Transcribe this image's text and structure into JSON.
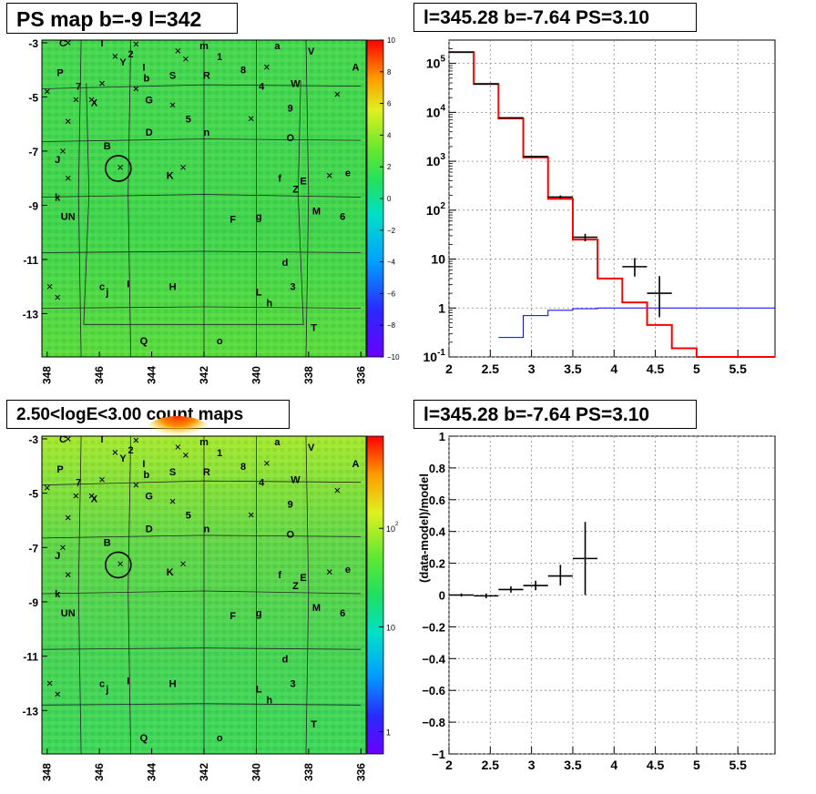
{
  "panels": {
    "top_left_title": "PS map b=-9 l=342",
    "top_right_title": "l=345.28 b=-7.64 PS=3.10",
    "bottom_left_title": "2.50<logE<3.00 count maps",
    "bottom_right_title": "l=345.28 b=-7.64 PS=3.10"
  },
  "colors": {
    "data": "#000000",
    "model": "#ff0000",
    "background_model": "#0000ff"
  },
  "chart_data": [
    {
      "type": "heatmap",
      "title": "PS map b=-9 l=342",
      "x_ticks": [
        "348",
        "346",
        "344",
        "342",
        "340",
        "338",
        "336"
      ],
      "y_ticks": [
        "-3",
        "-5",
        "-7",
        "-9",
        "-11",
        "-13"
      ],
      "xlim": [
        348.2,
        335.8
      ],
      "ylim": [
        -14.6,
        -2.9
      ],
      "colorbar": {
        "min": -10,
        "max": 10,
        "ticks": [
          "10",
          "8",
          "6",
          "4",
          "2",
          "0",
          "−2",
          "−4",
          "−6",
          "−8",
          "−10"
        ]
      },
      "circle": {
        "l": 345.28,
        "b": -7.64
      }
    },
    {
      "type": "line",
      "title": "l=345.28 b=-7.64 PS=3.10",
      "ylog": true,
      "xlim": [
        2,
        5.95
      ],
      "ylim": [
        0.1,
        300000
      ],
      "x_ticks": [
        "2",
        "2.5",
        "3",
        "3.5",
        "4",
        "4.5",
        "5",
        "5.5"
      ],
      "y_ticks": [
        "10^-1",
        "1",
        "10",
        "10^2",
        "10^3",
        "10^4",
        "10^5"
      ],
      "grid": true,
      "series": [
        {
          "role": "model",
          "style": "step",
          "edges": [
            2.0,
            2.3,
            2.6,
            2.9,
            3.2,
            3.5,
            3.8,
            4.1,
            4.4,
            4.7,
            5.0,
            5.95
          ],
          "values": [
            170000,
            38000,
            7500,
            1200,
            170,
            25,
            4,
            1.3,
            0.45,
            0.15,
            0.1
          ]
        },
        {
          "role": "background",
          "style": "step",
          "edges": [
            2.6,
            2.9,
            3.2,
            3.5,
            3.8,
            4.1,
            4.4,
            4.7,
            5.0,
            5.3,
            5.95
          ],
          "values": [
            0.25,
            0.7,
            0.9,
            0.97,
            1,
            1,
            1,
            1,
            1,
            1
          ]
        },
        {
          "role": "data",
          "style": "errorbar",
          "points": [
            {
              "x": 2.15,
              "y": 170000,
              "xerr": 0.15,
              "ylo": 168000,
              "yhi": 172000
            },
            {
              "x": 2.45,
              "y": 38000,
              "xerr": 0.15,
              "ylo": 37400,
              "yhi": 38600
            },
            {
              "x": 2.75,
              "y": 7700,
              "xerr": 0.15,
              "ylo": 7500,
              "yhi": 7900
            },
            {
              "x": 3.05,
              "y": 1250,
              "xerr": 0.15,
              "ylo": 1200,
              "yhi": 1300
            },
            {
              "x": 3.35,
              "y": 185,
              "xerr": 0.15,
              "ylo": 170,
              "yhi": 200
            },
            {
              "x": 3.65,
              "y": 28,
              "xerr": 0.15,
              "ylo": 23,
              "yhi": 33
            },
            {
              "x": 4.25,
              "y": 7,
              "xerr": 0.15,
              "ylo": 4.4,
              "yhi": 10.5
            },
            {
              "x": 4.55,
              "y": 2,
              "xerr": 0.15,
              "ylo": 0.65,
              "yhi": 4.5
            }
          ]
        }
      ]
    },
    {
      "type": "heatmap",
      "title": "2.50<logE<3.00 count maps",
      "x_ticks": [
        "348",
        "346",
        "344",
        "342",
        "340",
        "338",
        "336"
      ],
      "y_ticks": [
        "-3",
        "-5",
        "-7",
        "-9",
        "-11",
        "-13"
      ],
      "xlim": [
        348.2,
        335.8
      ],
      "ylim": [
        -14.6,
        -2.9
      ],
      "colorbar": {
        "log": true,
        "ticks": [
          "10^2",
          "10",
          "1"
        ]
      },
      "circle": {
        "l": 345.28,
        "b": -7.64
      }
    },
    {
      "type": "scatter",
      "title": "l=345.28 b=-7.64 PS=3.10",
      "ylabel": "(data-model)/model",
      "xlim": [
        2,
        5.95
      ],
      "ylim": [
        -1,
        1
      ],
      "x_ticks": [
        "2",
        "2.5",
        "3",
        "3.5",
        "4",
        "4.5",
        "5",
        "5.5"
      ],
      "y_ticks": [
        "1",
        "0.8",
        "0.6",
        "0.4",
        "0.2",
        "0",
        "−0.2",
        "−0.4",
        "−0.6",
        "−0.8",
        "−1"
      ],
      "grid": true,
      "points": [
        {
          "x": 2.15,
          "y": 0.0,
          "xerr": 0.15,
          "ylo": -0.01,
          "yhi": 0.01
        },
        {
          "x": 2.45,
          "y": -0.005,
          "xerr": 0.15,
          "ylo": -0.02,
          "yhi": 0.01
        },
        {
          "x": 2.75,
          "y": 0.035,
          "xerr": 0.15,
          "ylo": 0.015,
          "yhi": 0.055
        },
        {
          "x": 3.05,
          "y": 0.06,
          "xerr": 0.15,
          "ylo": 0.03,
          "yhi": 0.09
        },
        {
          "x": 3.35,
          "y": 0.12,
          "xerr": 0.15,
          "ylo": 0.06,
          "yhi": 0.19
        },
        {
          "x": 3.65,
          "y": 0.23,
          "xerr": 0.15,
          "ylo": 0.0,
          "yhi": 0.46
        }
      ]
    }
  ],
  "source_labels": [
    {
      "t": "C",
      "l": 347.4,
      "b": -3.0
    },
    {
      "t": "I",
      "l": 345.9,
      "b": -3.0
    },
    {
      "t": "m",
      "l": 342.0,
      "b": -3.1
    },
    {
      "t": "a",
      "l": 339.2,
      "b": -3.1
    },
    {
      "t": "V",
      "l": 337.9,
      "b": -3.3
    },
    {
      "t": "2",
      "l": 344.8,
      "b": -3.4
    },
    {
      "t": "1",
      "l": 341.4,
      "b": -3.5
    },
    {
      "t": "Y",
      "l": 345.1,
      "b": -3.7
    },
    {
      "t": "8",
      "l": 340.5,
      "b": -4.0
    },
    {
      "t": "A",
      "l": 336.2,
      "b": -3.9
    },
    {
      "t": "P",
      "l": 347.5,
      "b": -4.1
    },
    {
      "t": "I",
      "l": 344.3,
      "b": -3.9
    },
    {
      "t": "b",
      "l": 344.2,
      "b": -4.3
    },
    {
      "t": "S",
      "l": 343.2,
      "b": -4.2
    },
    {
      "t": "R",
      "l": 341.9,
      "b": -4.2
    },
    {
      "t": "7",
      "l": 346.8,
      "b": -4.6
    },
    {
      "t": "4",
      "l": 339.8,
      "b": -4.6
    },
    {
      "t": "W",
      "l": 338.5,
      "b": -4.5
    },
    {
      "t": "G",
      "l": 344.1,
      "b": -5.1
    },
    {
      "t": "X",
      "l": 346.2,
      "b": -5.2
    },
    {
      "t": "9",
      "l": 338.7,
      "b": -5.4
    },
    {
      "t": "5",
      "l": 342.6,
      "b": -5.8
    },
    {
      "t": "D",
      "l": 344.1,
      "b": -6.3
    },
    {
      "t": "n",
      "l": 341.9,
      "b": -6.3
    },
    {
      "t": "O",
      "l": 338.7,
      "b": -6.5
    },
    {
      "t": "B",
      "l": 345.7,
      "b": -6.8
    },
    {
      "t": "J",
      "l": 347.6,
      "b": -7.3
    },
    {
      "t": "K",
      "l": 343.3,
      "b": -7.9
    },
    {
      "t": "f",
      "l": 339.1,
      "b": -8.0
    },
    {
      "t": "e",
      "l": 336.5,
      "b": -7.8
    },
    {
      "t": "E",
      "l": 338.2,
      "b": -8.1
    },
    {
      "t": "Z",
      "l": 338.5,
      "b": -8.4
    },
    {
      "t": "k",
      "l": 347.6,
      "b": -8.7
    },
    {
      "t": "M",
      "l": 337.7,
      "b": -9.2
    },
    {
      "t": "6",
      "l": 336.7,
      "b": -9.4
    },
    {
      "t": "g",
      "l": 339.9,
      "b": -9.4
    },
    {
      "t": "UN",
      "l": 347.2,
      "b": -9.4
    },
    {
      "t": "F",
      "l": 340.9,
      "b": -9.5
    },
    {
      "t": "d",
      "l": 338.9,
      "b": -11.1
    },
    {
      "t": "c",
      "l": 345.9,
      "b": -12.0
    },
    {
      "t": "j",
      "l": 345.7,
      "b": -12.2
    },
    {
      "t": "I",
      "l": 344.9,
      "b": -11.9
    },
    {
      "t": "H",
      "l": 343.2,
      "b": -12.0
    },
    {
      "t": "3",
      "l": 338.6,
      "b": -12.0
    },
    {
      "t": "L",
      "l": 339.9,
      "b": -12.2
    },
    {
      "t": "h",
      "l": 339.5,
      "b": -12.6
    },
    {
      "t": "T",
      "l": 337.8,
      "b": -13.5
    },
    {
      "t": "Q",
      "l": 344.3,
      "b": -14.0
    },
    {
      "t": "o",
      "l": 341.4,
      "b": -14.0
    }
  ],
  "source_marks": [
    [
      347.2,
      -3.0
    ],
    [
      345.4,
      -3.5
    ],
    [
      344.6,
      -3.05
    ],
    [
      343.0,
      -3.3
    ],
    [
      342.7,
      -3.6
    ],
    [
      339.6,
      -3.9
    ],
    [
      348.0,
      -4.8
    ],
    [
      346.9,
      -5.1
    ],
    [
      346.3,
      -5.1
    ],
    [
      344.6,
      -4.7
    ],
    [
      343.2,
      -5.3
    ],
    [
      340.2,
      -5.8
    ],
    [
      347.2,
      -5.9
    ],
    [
      336.9,
      -4.9
    ],
    [
      345.9,
      -4.5
    ],
    [
      347.4,
      -7.0
    ],
    [
      347.2,
      -8.0
    ],
    [
      342.8,
      -7.6
    ],
    [
      337.2,
      -7.9
    ],
    [
      347.9,
      -12.0
    ],
    [
      347.6,
      -12.4
    ],
    [
      345.2,
      -7.6
    ]
  ],
  "grid_lines": {
    "horizontal": [
      [
        [
          348.2,
          -4.7
        ],
        [
          342,
          -4.55
        ],
        [
          336,
          -4.6
        ]
      ],
      [
        [
          348.2,
          -6.65
        ],
        [
          342,
          -6.55
        ],
        [
          336,
          -6.6
        ]
      ],
      [
        [
          348.2,
          -8.7
        ],
        [
          342,
          -8.6
        ],
        [
          336,
          -8.7
        ]
      ],
      [
        [
          348.2,
          -10.75
        ],
        [
          342,
          -10.7
        ],
        [
          336,
          -10.75
        ]
      ],
      [
        [
          348.2,
          -12.8
        ],
        [
          342,
          -12.75
        ],
        [
          336,
          -12.8
        ]
      ]
    ],
    "vertical": [
      [
        [
          346.7,
          -2.9
        ],
        [
          346.8,
          -8.6
        ],
        [
          346.7,
          -14.6
        ]
      ],
      [
        [
          344.8,
          -2.9
        ],
        [
          344.9,
          -8.6
        ],
        [
          344.8,
          -14.6
        ]
      ],
      [
        [
          342.0,
          -2.9
        ],
        [
          342.0,
          -8.6
        ],
        [
          342.0,
          -14.6
        ]
      ],
      [
        [
          340.0,
          -2.9
        ],
        [
          340.0,
          -8.6
        ],
        [
          340.0,
          -14.6
        ]
      ],
      [
        [
          338.1,
          -2.9
        ],
        [
          338.0,
          -8.6
        ],
        [
          338.1,
          -14.6
        ]
      ]
    ],
    "inner_box_top_only": [
      [
        346.5,
        -4.5
      ],
      [
        346.4,
        -8.6
      ],
      [
        346.6,
        -13.4
      ],
      [
        342.0,
        -13.4
      ],
      [
        338.2,
        -13.4
      ],
      [
        338.4,
        -8.6
      ],
      [
        338.3,
        -4.4
      ]
    ]
  }
}
